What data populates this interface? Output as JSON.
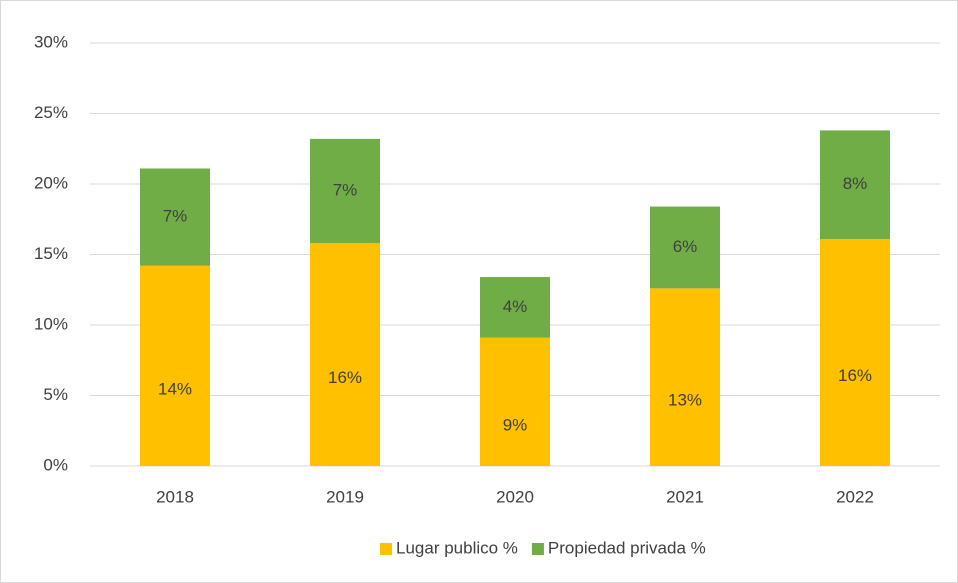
{
  "chart_data": {
    "type": "stacked_bar",
    "categories": [
      "2018",
      "2019",
      "2020",
      "2021",
      "2022"
    ],
    "series": [
      {
        "name": "Lugar publico %",
        "color": "#FFC000",
        "values": [
          14.2,
          15.8,
          9.1,
          12.6,
          16.1
        ],
        "value_labels": [
          "14%",
          "16%",
          "9%",
          "13%",
          "16%"
        ]
      },
      {
        "name": "Propiedad privada %",
        "color": "#70AD47",
        "values": [
          6.9,
          7.4,
          4.3,
          5.8,
          7.7
        ],
        "value_labels": [
          "7%",
          "7%",
          "4%",
          "6%",
          "8%"
        ]
      }
    ],
    "ylim": [
      0,
      30
    ],
    "yticks": [
      {
        "value": 0,
        "label": "0%"
      },
      {
        "value": 5,
        "label": "5%"
      },
      {
        "value": 10,
        "label": "10%"
      },
      {
        "value": 15,
        "label": "15%"
      },
      {
        "value": 20,
        "label": "20%"
      },
      {
        "value": 25,
        "label": "25%"
      },
      {
        "value": 30,
        "label": "30%"
      }
    ],
    "grid": true,
    "legend": "bottom"
  }
}
